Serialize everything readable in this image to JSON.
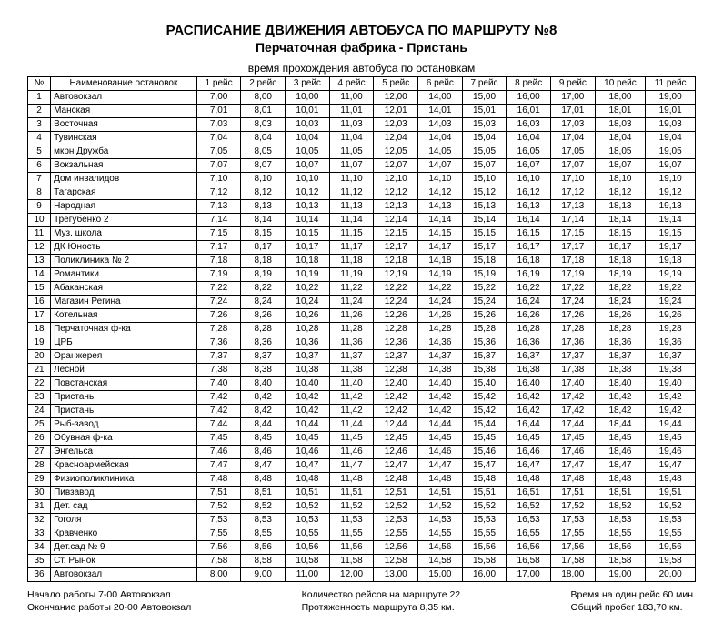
{
  "title": "РАСПИСАНИЕ ДВИЖЕНИЯ АВТОБУСА ПО МАРШРУТУ №8",
  "subtitle": "Перчаточная фабрика - Пристань",
  "caption": "время прохождения автобуса по остановкам",
  "columns": [
    "№",
    "Наименование остановок",
    "1 рейс",
    "2 рейс",
    "3 рейс",
    "4 рейс",
    "5 рейс",
    "6 рейс",
    "7 рейс",
    "8 рейс",
    "9 рейс",
    "10 рейс",
    "11 рейс"
  ],
  "rows": [
    [
      "1",
      "Автовокзал",
      "7,00",
      "8,00",
      "10,00",
      "11,00",
      "12,00",
      "14,00",
      "15,00",
      "16,00",
      "17,00",
      "18,00",
      "19,00"
    ],
    [
      "2",
      "Манская",
      "7,01",
      "8,01",
      "10,01",
      "11,01",
      "12,01",
      "14,01",
      "15,01",
      "16,01",
      "17,01",
      "18,01",
      "19,01"
    ],
    [
      "3",
      "Восточная",
      "7,03",
      "8,03",
      "10,03",
      "11,03",
      "12,03",
      "14,03",
      "15,03",
      "16,03",
      "17,03",
      "18,03",
      "19,03"
    ],
    [
      "4",
      "Тувинская",
      "7,04",
      "8,04",
      "10,04",
      "11,04",
      "12,04",
      "14,04",
      "15,04",
      "16,04",
      "17,04",
      "18,04",
      "19,04"
    ],
    [
      "5",
      "мкрн Дружба",
      "7,05",
      "8,05",
      "10,05",
      "11,05",
      "12,05",
      "14,05",
      "15,05",
      "16,05",
      "17,05",
      "18,05",
      "19,05"
    ],
    [
      "6",
      "Вокзальная",
      "7,07",
      "8,07",
      "10,07",
      "11,07",
      "12,07",
      "14,07",
      "15,07",
      "16,07",
      "17,07",
      "18,07",
      "19,07"
    ],
    [
      "7",
      "Дом инвалидов",
      "7,10",
      "8,10",
      "10,10",
      "11,10",
      "12,10",
      "14,10",
      "15,10",
      "16,10",
      "17,10",
      "18,10",
      "19,10"
    ],
    [
      "8",
      "Тагарская",
      "7,12",
      "8,12",
      "10,12",
      "11,12",
      "12,12",
      "14,12",
      "15,12",
      "16,12",
      "17,12",
      "18,12",
      "19,12"
    ],
    [
      "9",
      "Народная",
      "7,13",
      "8,13",
      "10,13",
      "11,13",
      "12,13",
      "14,13",
      "15,13",
      "16,13",
      "17,13",
      "18,13",
      "19,13"
    ],
    [
      "10",
      "Трегубенко 2",
      "7,14",
      "8,14",
      "10,14",
      "11,14",
      "12,14",
      "14,14",
      "15,14",
      "16,14",
      "17,14",
      "18,14",
      "19,14"
    ],
    [
      "11",
      "Муз. школа",
      "7,15",
      "8,15",
      "10,15",
      "11,15",
      "12,15",
      "14,15",
      "15,15",
      "16,15",
      "17,15",
      "18,15",
      "19,15"
    ],
    [
      "12",
      "ДК Юность",
      "7,17",
      "8,17",
      "10,17",
      "11,17",
      "12,17",
      "14,17",
      "15,17",
      "16,17",
      "17,17",
      "18,17",
      "19,17"
    ],
    [
      "13",
      "Поликлиника № 2",
      "7,18",
      "8,18",
      "10,18",
      "11,18",
      "12,18",
      "14,18",
      "15,18",
      "16,18",
      "17,18",
      "18,18",
      "19,18"
    ],
    [
      "14",
      "Романтики",
      "7,19",
      "8,19",
      "10,19",
      "11,19",
      "12,19",
      "14,19",
      "15,19",
      "16,19",
      "17,19",
      "18,19",
      "19,19"
    ],
    [
      "15",
      "Абаканская",
      "7,22",
      "8,22",
      "10,22",
      "11,22",
      "12,22",
      "14,22",
      "15,22",
      "16,22",
      "17,22",
      "18,22",
      "19,22"
    ],
    [
      "16",
      "Магазин Регина",
      "7,24",
      "8,24",
      "10,24",
      "11,24",
      "12,24",
      "14,24",
      "15,24",
      "16,24",
      "17,24",
      "18,24",
      "19,24"
    ],
    [
      "17",
      "Котельная",
      "7,26",
      "8,26",
      "10,26",
      "11,26",
      "12,26",
      "14,26",
      "15,26",
      "16,26",
      "17,26",
      "18,26",
      "19,26"
    ],
    [
      "18",
      "Перчаточная ф-ка",
      "7,28",
      "8,28",
      "10,28",
      "11,28",
      "12,28",
      "14,28",
      "15,28",
      "16,28",
      "17,28",
      "18,28",
      "19,28"
    ],
    [
      "19",
      "ЦРБ",
      "7,36",
      "8,36",
      "10,36",
      "11,36",
      "12,36",
      "14,36",
      "15,36",
      "16,36",
      "17,36",
      "18,36",
      "19,36"
    ],
    [
      "20",
      "Оранжерея",
      "7,37",
      "8,37",
      "10,37",
      "11,37",
      "12,37",
      "14,37",
      "15,37",
      "16,37",
      "17,37",
      "18,37",
      "19,37"
    ],
    [
      "21",
      "Лесной",
      "7,38",
      "8,38",
      "10,38",
      "11,38",
      "12,38",
      "14,38",
      "15,38",
      "16,38",
      "17,38",
      "18,38",
      "19,38"
    ],
    [
      "22",
      "Повстанская",
      "7,40",
      "8,40",
      "10,40",
      "11,40",
      "12,40",
      "14,40",
      "15,40",
      "16,40",
      "17,40",
      "18,40",
      "19,40"
    ],
    [
      "23",
      "Пристань",
      "7,42",
      "8,42",
      "10,42",
      "11,42",
      "12,42",
      "14,42",
      "15,42",
      "16,42",
      "17,42",
      "18,42",
      "19,42"
    ],
    [
      "24",
      "Пристань",
      "7,42",
      "8,42",
      "10,42",
      "11,42",
      "12,42",
      "14,42",
      "15,42",
      "16,42",
      "17,42",
      "18,42",
      "19,42"
    ],
    [
      "25",
      "Рыб-завод",
      "7,44",
      "8,44",
      "10,44",
      "11,44",
      "12,44",
      "14,44",
      "15,44",
      "16,44",
      "17,44",
      "18,44",
      "19,44"
    ],
    [
      "26",
      "Обувная ф-ка",
      "7,45",
      "8,45",
      "10,45",
      "11,45",
      "12,45",
      "14,45",
      "15,45",
      "16,45",
      "17,45",
      "18,45",
      "19,45"
    ],
    [
      "27",
      "Энгельса",
      "7,46",
      "8,46",
      "10,46",
      "11,46",
      "12,46",
      "14,46",
      "15,46",
      "16,46",
      "17,46",
      "18,46",
      "19,46"
    ],
    [
      "28",
      "Красноармейская",
      "7,47",
      "8,47",
      "10,47",
      "11,47",
      "12,47",
      "14,47",
      "15,47",
      "16,47",
      "17,47",
      "18,47",
      "19,47"
    ],
    [
      "29",
      "Физиополиклиника",
      "7,48",
      "8,48",
      "10,48",
      "11,48",
      "12,48",
      "14,48",
      "15,48",
      "16,48",
      "17,48",
      "18,48",
      "19,48"
    ],
    [
      "30",
      "Пивзавод",
      "7,51",
      "8,51",
      "10,51",
      "11,51",
      "12,51",
      "14,51",
      "15,51",
      "16,51",
      "17,51",
      "18,51",
      "19,51"
    ],
    [
      "31",
      "Дет. сад",
      "7,52",
      "8,52",
      "10,52",
      "11,52",
      "12,52",
      "14,52",
      "15,52",
      "16,52",
      "17,52",
      "18,52",
      "19,52"
    ],
    [
      "32",
      "Гоголя",
      "7,53",
      "8,53",
      "10,53",
      "11,53",
      "12,53",
      "14,53",
      "15,53",
      "16,53",
      "17,53",
      "18,53",
      "19,53"
    ],
    [
      "33",
      "Кравченко",
      "7,55",
      "8,55",
      "10,55",
      "11,55",
      "12,55",
      "14,55",
      "15,55",
      "16,55",
      "17,55",
      "18,55",
      "19,55"
    ],
    [
      "34",
      "Дет.сад № 9",
      "7,56",
      "8,56",
      "10,56",
      "11,56",
      "12,56",
      "14,56",
      "15,56",
      "16,56",
      "17,56",
      "18,56",
      "19,56"
    ],
    [
      "35",
      "Ст. Рынок",
      "7,58",
      "8,58",
      "10,58",
      "11,58",
      "12,58",
      "14,58",
      "15,58",
      "16,58",
      "17,58",
      "18,58",
      "19,58"
    ],
    [
      "36",
      "Автовокзал",
      "8,00",
      "9,00",
      "11,00",
      "12,00",
      "13,00",
      "15,00",
      "16,00",
      "17,00",
      "18,00",
      "19,00",
      "20,00"
    ]
  ],
  "footer": {
    "left1": "Начало работы 7-00 Автовокзал",
    "left2": "Окончание работы 20-00  Автовокзал",
    "mid1": "Количество рейсов на маршруте 22",
    "mid2": "Протяженность маршрута 8,35 км.",
    "right1": "Время на один рейс 60 мин.",
    "right2": "Общий пробег 183,70 км."
  }
}
